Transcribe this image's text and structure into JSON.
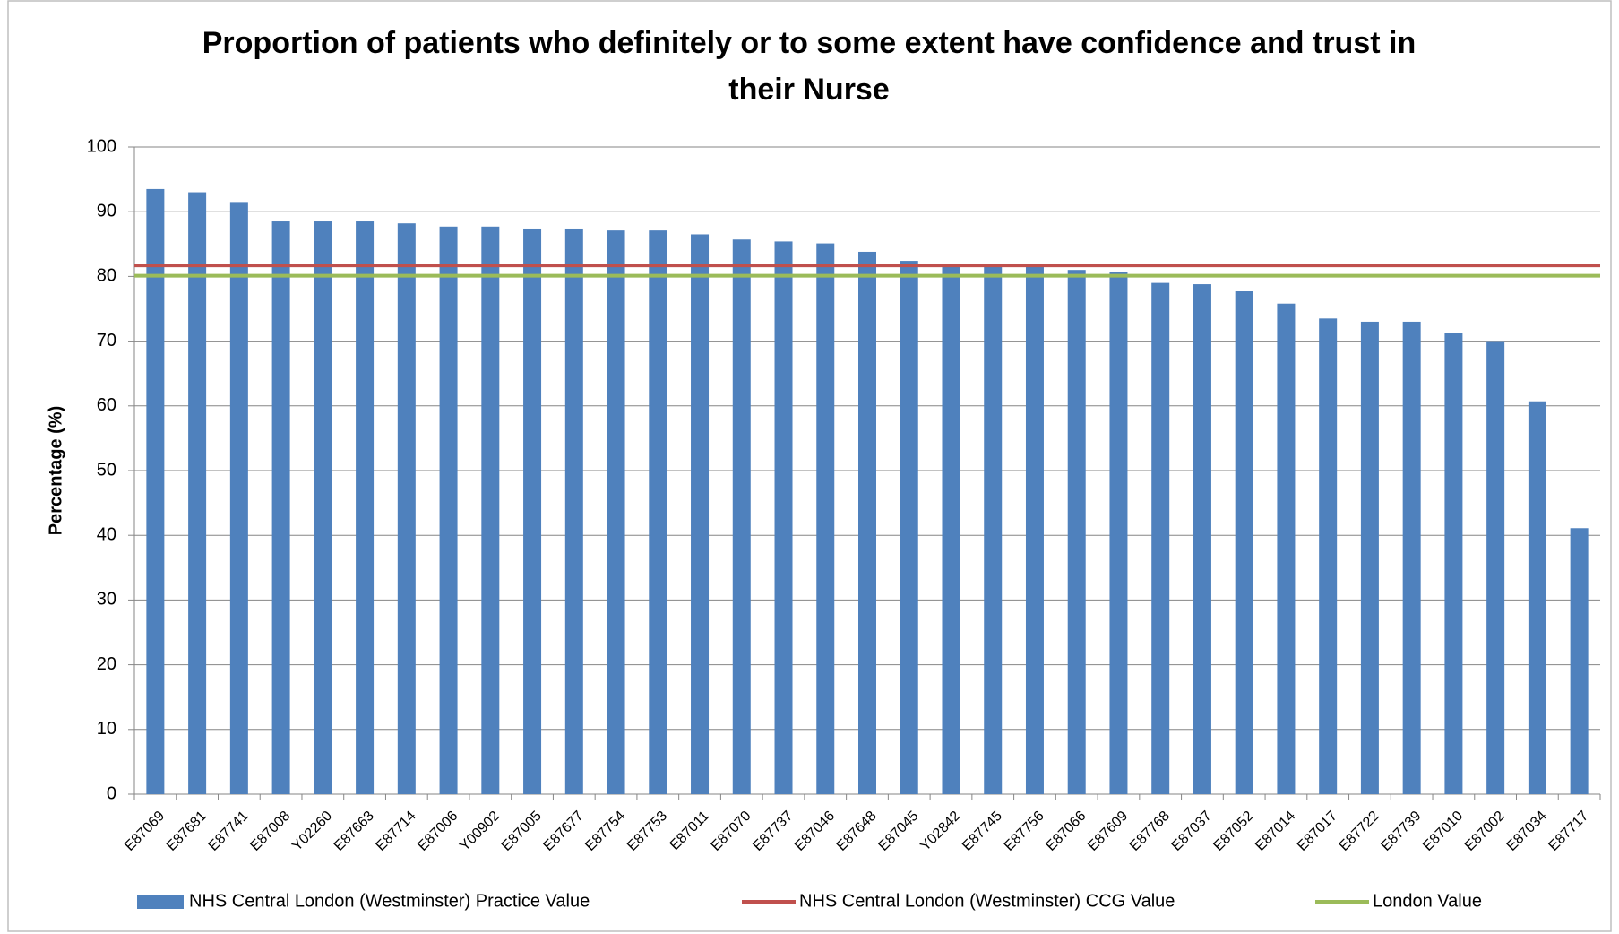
{
  "chart_data": {
    "type": "bar",
    "title": "Proportion of patients who definitely or to some extent have confidence and trust in their Nurse",
    "y_label": "Percentage (%)",
    "categories": [
      "E87069",
      "E87681",
      "E87741",
      "E87008",
      "Y02260",
      "E87663",
      "E87714",
      "E87006",
      "Y00902",
      "E87005",
      "E87677",
      "E87754",
      "E87753",
      "E87011",
      "E87070",
      "E87737",
      "E87046",
      "E87648",
      "E87045",
      "Y02842",
      "E87745",
      "E87756",
      "E87066",
      "E87609",
      "E87768",
      "E87037",
      "E87052",
      "E87014",
      "E87017",
      "E87722",
      "E87739",
      "E87010",
      "E87002",
      "E87034",
      "E87717"
    ],
    "series": [
      {
        "name": "NHS Central London (Westminster) Practice Value",
        "color": "#4f81bd",
        "values": [
          93.5,
          93,
          91.5,
          88.5,
          88.5,
          88.5,
          88.2,
          87.7,
          87.7,
          87.4,
          87.4,
          87.1,
          87.1,
          86.5,
          85.7,
          85.4,
          85.1,
          83.8,
          82.4,
          81.5,
          81.5,
          81.5,
          81,
          80.7,
          79,
          78.8,
          77.7,
          75.8,
          73.5,
          73,
          73,
          71.2,
          70,
          60.7,
          41.1
        ]
      },
      {
        "name": "NHS Central London (Westminster) CCG Value",
        "color": "#c0504d",
        "value": 81.7
      },
      {
        "name": "London Value",
        "color": "#9bbb59",
        "value": 80.1
      }
    ],
    "ylim": [
      0,
      100
    ],
    "yticks": [
      0,
      10,
      20,
      30,
      40,
      50,
      60,
      70,
      80,
      90,
      100
    ],
    "grid": true
  }
}
